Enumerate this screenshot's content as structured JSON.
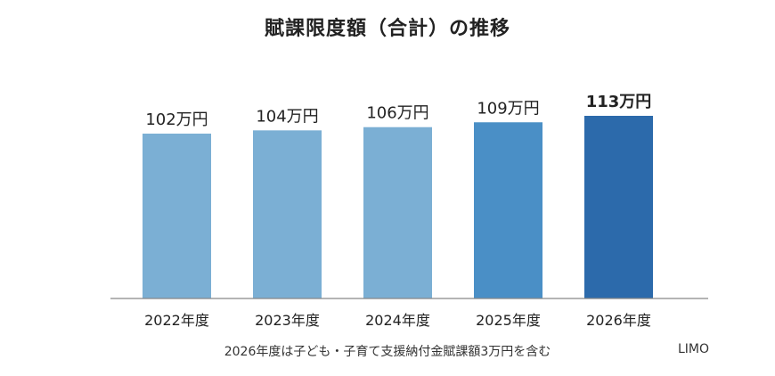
{
  "chart_data": {
    "type": "bar",
    "title": "賦課限度額（合計）の推移",
    "categories": [
      "2022年度",
      "2023年度",
      "2024年度",
      "2025年度",
      "2026年度"
    ],
    "values": [
      102,
      104,
      106,
      109,
      113
    ],
    "value_labels": [
      "102万円",
      "104万円",
      "106万円",
      "109万円",
      "113万円"
    ],
    "unit": "万円",
    "bar_colors": [
      "#7bafd4",
      "#7bafd4",
      "#7bafd4",
      "#4a8fc6",
      "#2c6aab"
    ],
    "highlight_index": 4,
    "ylim": [
      0,
      113
    ],
    "grid": false,
    "legend": "none",
    "xlabel": "",
    "ylabel": ""
  },
  "footnote": "2026年度は子ども・子育て支援納付金賦課額3万円を含む",
  "source": "LIMO"
}
